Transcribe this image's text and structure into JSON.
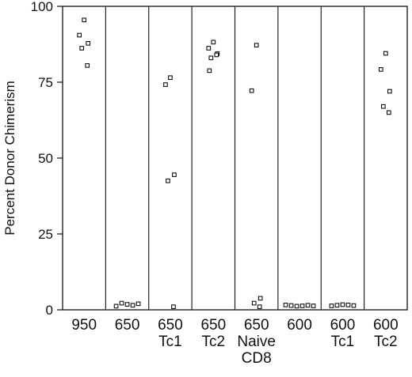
{
  "chart_data": {
    "type": "scatter",
    "title": "",
    "xlabel": "",
    "ylabel": "Percent Donor Chimerism",
    "ylim": [
      0,
      100
    ],
    "yticks": [
      0,
      25,
      50,
      75,
      100
    ],
    "ytick_labels": [
      "0",
      "25",
      "50",
      "75",
      "100"
    ],
    "grid": false,
    "legend": "none",
    "marker": "open-square",
    "colors": {
      "marker": "#111111",
      "axis": "#111111",
      "background": "#ffffff"
    },
    "groups": [
      {
        "label_lines": [
          "950"
        ],
        "values": [
          95.5,
          90.5,
          87.8,
          86.2,
          80.5
        ]
      },
      {
        "label_lines": [
          "650"
        ],
        "values": [
          1.2,
          2.2,
          1.8,
          1.5,
          2.0
        ]
      },
      {
        "label_lines": [
          "650",
          "Tc1"
        ],
        "values": [
          76.5,
          74.2,
          44.5,
          42.5,
          1.0
        ]
      },
      {
        "label_lines": [
          "650",
          "Tc2"
        ],
        "values": [
          88.2,
          86.2,
          84.4,
          83.0,
          84.0,
          78.8
        ]
      },
      {
        "label_lines": [
          "650",
          "Naive",
          "CD8"
        ],
        "values": [
          87.2,
          72.2,
          3.8,
          2.2,
          1.0
        ]
      },
      {
        "label_lines": [
          "600"
        ],
        "values": [
          1.6,
          1.4,
          1.2,
          1.3,
          1.5,
          1.3
        ]
      },
      {
        "label_lines": [
          "600",
          "Tc1"
        ],
        "values": [
          1.3,
          1.5,
          1.7,
          1.6,
          1.4
        ]
      },
      {
        "label_lines": [
          "600",
          "Tc2"
        ],
        "values": [
          84.5,
          79.2,
          72.0,
          67.0,
          65.0
        ]
      }
    ]
  }
}
